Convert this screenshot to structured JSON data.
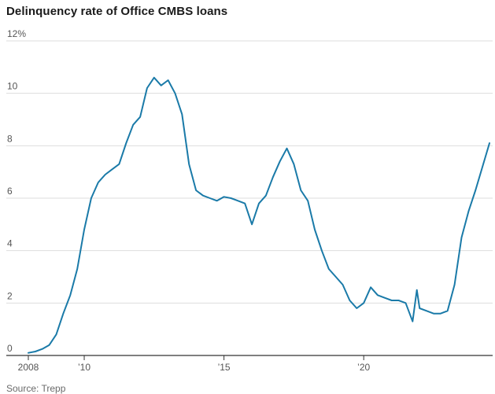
{
  "title": "Delinquency rate of Office CMBS loans",
  "source": "Source: Trepp",
  "colors": {
    "line": "#1a7aa8",
    "grid": "#dddddd",
    "axis": "#333333"
  },
  "chart_data": {
    "type": "line",
    "title": "Delinquency rate of Office CMBS loans",
    "xlabel": "",
    "ylabel": "",
    "grid": "horizontal",
    "xlim": [
      2008,
      2024.5
    ],
    "ylim": [
      0,
      12
    ],
    "y_ticks": [
      {
        "value": 12,
        "label": "12%"
      },
      {
        "value": 10,
        "label": "10"
      },
      {
        "value": 8,
        "label": "8"
      },
      {
        "value": 6,
        "label": "6"
      },
      {
        "value": 4,
        "label": "4"
      },
      {
        "value": 2,
        "label": "2"
      },
      {
        "value": 0,
        "label": "0"
      }
    ],
    "x_ticks": [
      {
        "value": 2008,
        "label": "2008"
      },
      {
        "value": 2010,
        "label": "’10"
      },
      {
        "value": 2015,
        "label": "’15"
      },
      {
        "value": 2020,
        "label": "’20"
      }
    ],
    "series": [
      {
        "x": [
          2008.0,
          2008.25,
          2008.5,
          2008.75,
          2009.0,
          2009.25,
          2009.5,
          2009.75,
          2010.0,
          2010.25,
          2010.5,
          2010.75,
          2011.0,
          2011.25,
          2011.5,
          2011.75,
          2012.0,
          2012.25,
          2012.5,
          2012.75,
          2013.0,
          2013.25,
          2013.5,
          2013.75,
          2014.0,
          2014.25,
          2014.5,
          2014.75,
          2015.0,
          2015.25,
          2015.5,
          2015.75,
          2016.0,
          2016.25,
          2016.5,
          2016.75,
          2017.0,
          2017.25,
          2017.5,
          2017.75,
          2018.0,
          2018.25,
          2018.5,
          2018.75,
          2019.0,
          2019.25,
          2019.5,
          2019.75,
          2020.0,
          2020.25,
          2020.5,
          2020.75,
          2021.0,
          2021.25,
          2021.5,
          2021.75,
          2021.9,
          2022.0,
          2022.25,
          2022.5,
          2022.75,
          2023.0,
          2023.25,
          2023.5,
          2023.75,
          2024.0,
          2024.25,
          2024.5
        ],
        "values": [
          0.1,
          0.15,
          0.25,
          0.4,
          0.8,
          1.6,
          2.3,
          3.3,
          4.8,
          6.0,
          6.6,
          6.9,
          7.1,
          7.3,
          8.1,
          8.8,
          9.1,
          10.2,
          10.6,
          10.3,
          10.5,
          10.0,
          9.2,
          7.3,
          6.3,
          6.1,
          6.0,
          5.9,
          6.05,
          6.0,
          5.9,
          5.8,
          5.0,
          5.8,
          6.1,
          6.8,
          7.4,
          7.9,
          7.3,
          6.3,
          5.9,
          4.8,
          4.0,
          3.3,
          3.0,
          2.7,
          2.1,
          1.8,
          2.0,
          2.6,
          2.3,
          2.2,
          2.1,
          2.1,
          2.0,
          1.3,
          2.5,
          1.8,
          1.7,
          1.6,
          1.6,
          1.7,
          2.7,
          4.5,
          5.5,
          6.3,
          7.2,
          8.1
        ]
      }
    ]
  }
}
